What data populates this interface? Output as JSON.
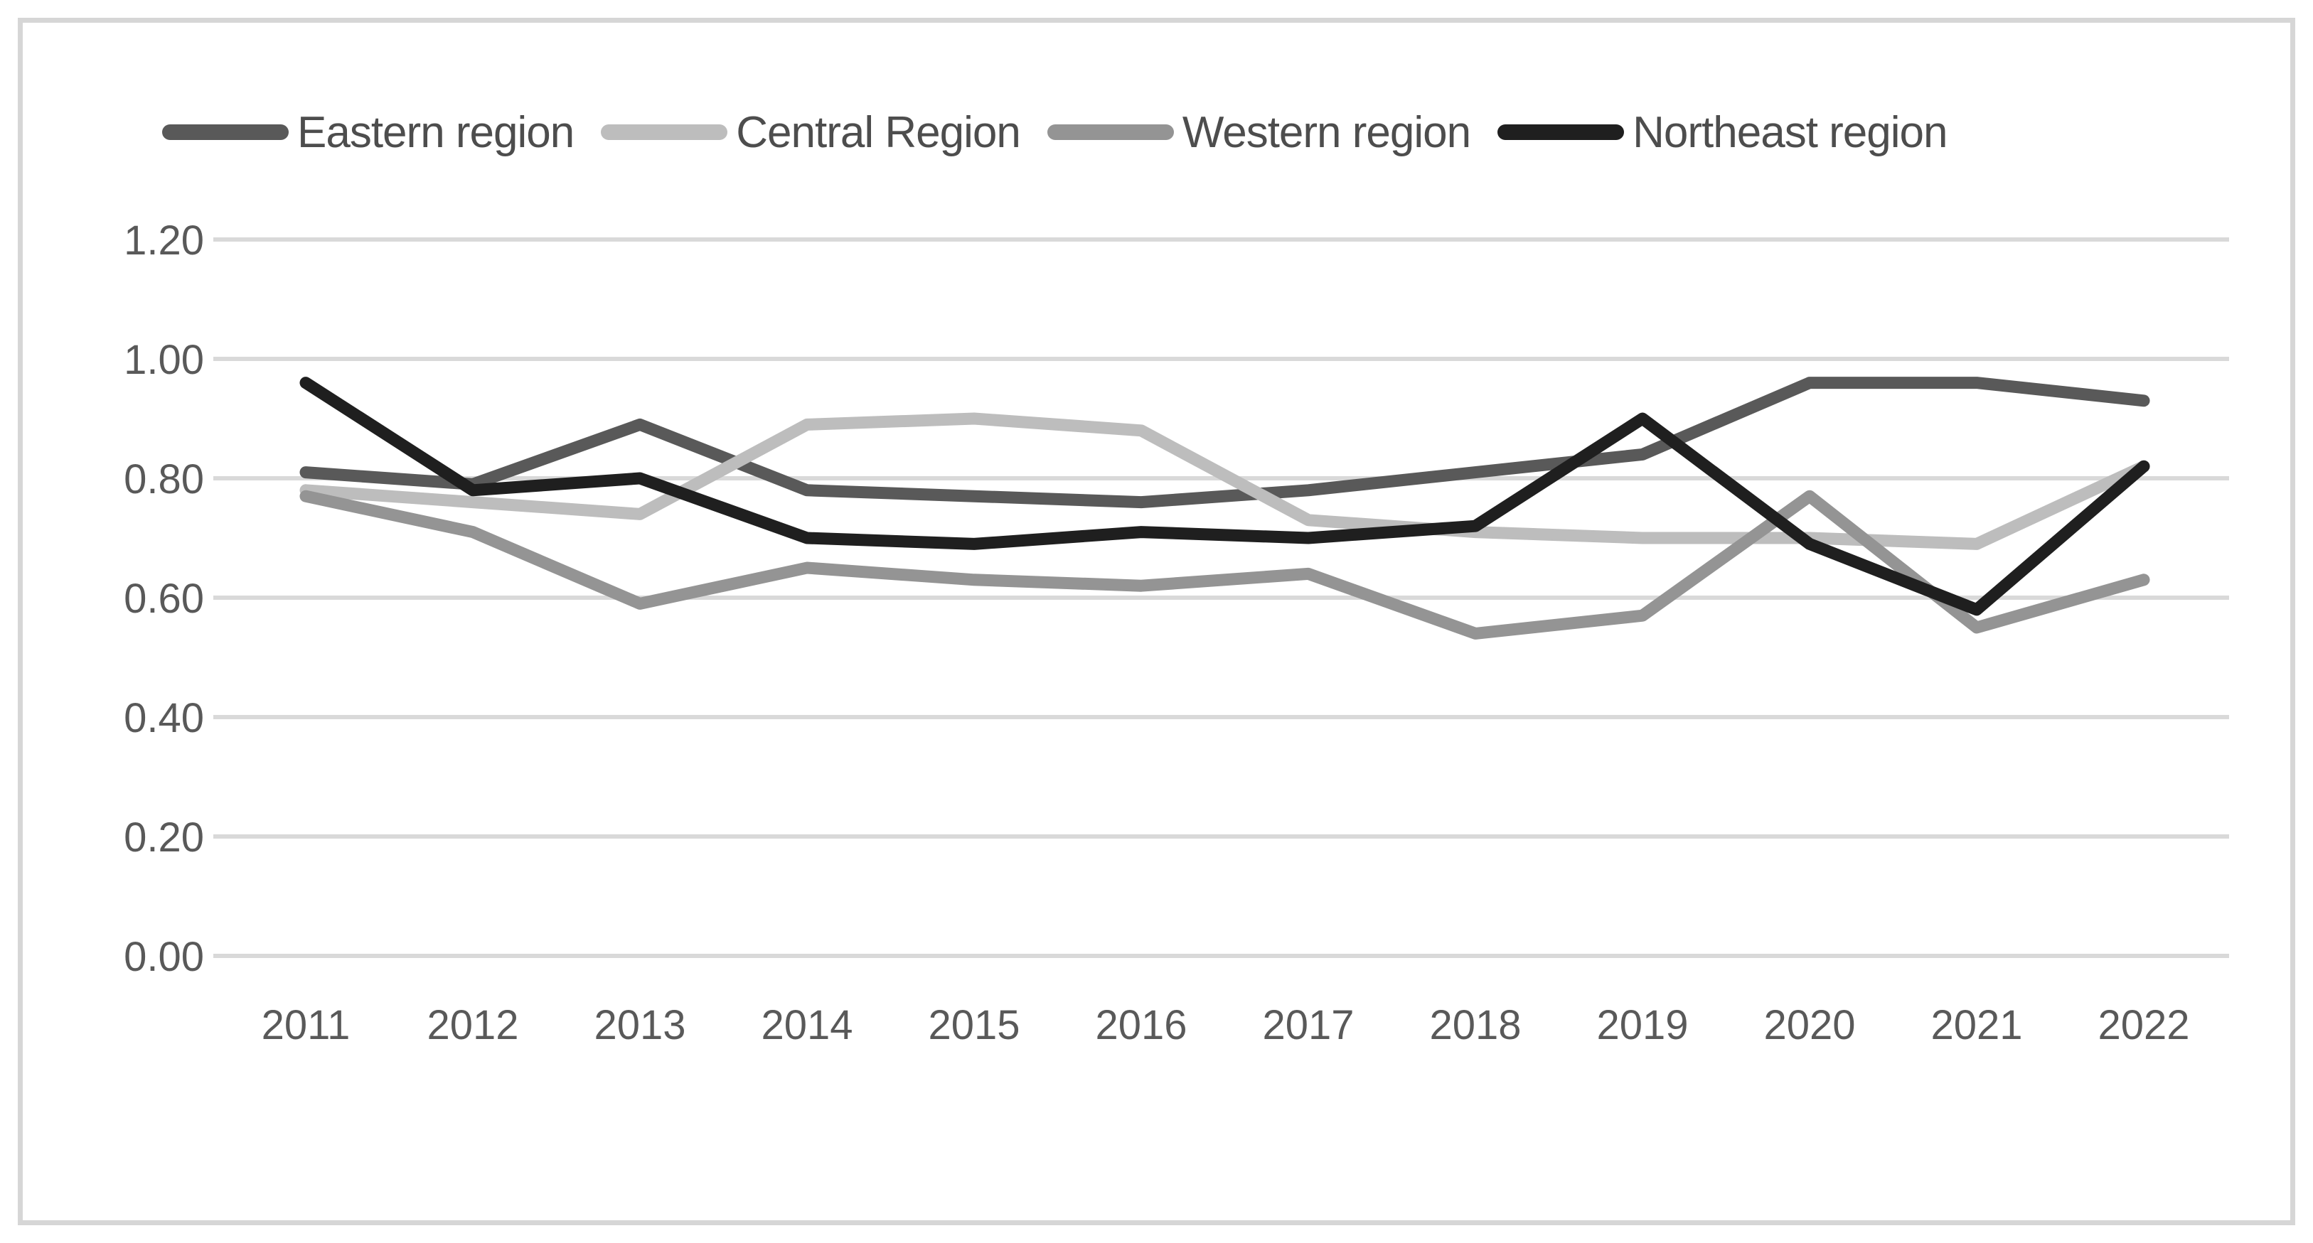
{
  "chart_data": {
    "type": "line",
    "categories": [
      "2011",
      "2012",
      "2013",
      "2014",
      "2015",
      "2016",
      "2017",
      "2018",
      "2019",
      "2020",
      "2021",
      "2022"
    ],
    "series": [
      {
        "name": "Eastern region",
        "color": "#595959",
        "values": [
          0.81,
          0.79,
          0.89,
          0.78,
          0.77,
          0.76,
          0.78,
          0.81,
          0.84,
          0.96,
          0.96,
          0.93
        ]
      },
      {
        "name": "Central Region",
        "color": "#bdbdbd",
        "values": [
          0.78,
          0.76,
          0.74,
          0.89,
          0.9,
          0.88,
          0.73,
          0.71,
          0.7,
          0.7,
          0.69,
          0.82
        ]
      },
      {
        "name": "Western region",
        "color": "#949494",
        "values": [
          0.77,
          0.71,
          0.59,
          0.65,
          0.63,
          0.62,
          0.64,
          0.54,
          0.57,
          0.77,
          0.55,
          0.63
        ]
      },
      {
        "name": "Northeast region",
        "color": "#1f1f1f",
        "values": [
          0.96,
          0.78,
          0.8,
          0.7,
          0.69,
          0.71,
          0.7,
          0.72,
          0.9,
          0.69,
          0.58,
          0.82
        ]
      }
    ],
    "title": "",
    "xlabel": "",
    "ylabel": "",
    "y_ticks": [
      "0.00",
      "0.20",
      "0.40",
      "0.60",
      "0.80",
      "1.00",
      "1.20"
    ],
    "ylim": [
      0,
      1.2
    ],
    "grid": true,
    "gridline_color": "#d9d9d9",
    "axis_text_color": "#595959",
    "legend_position": "top"
  }
}
